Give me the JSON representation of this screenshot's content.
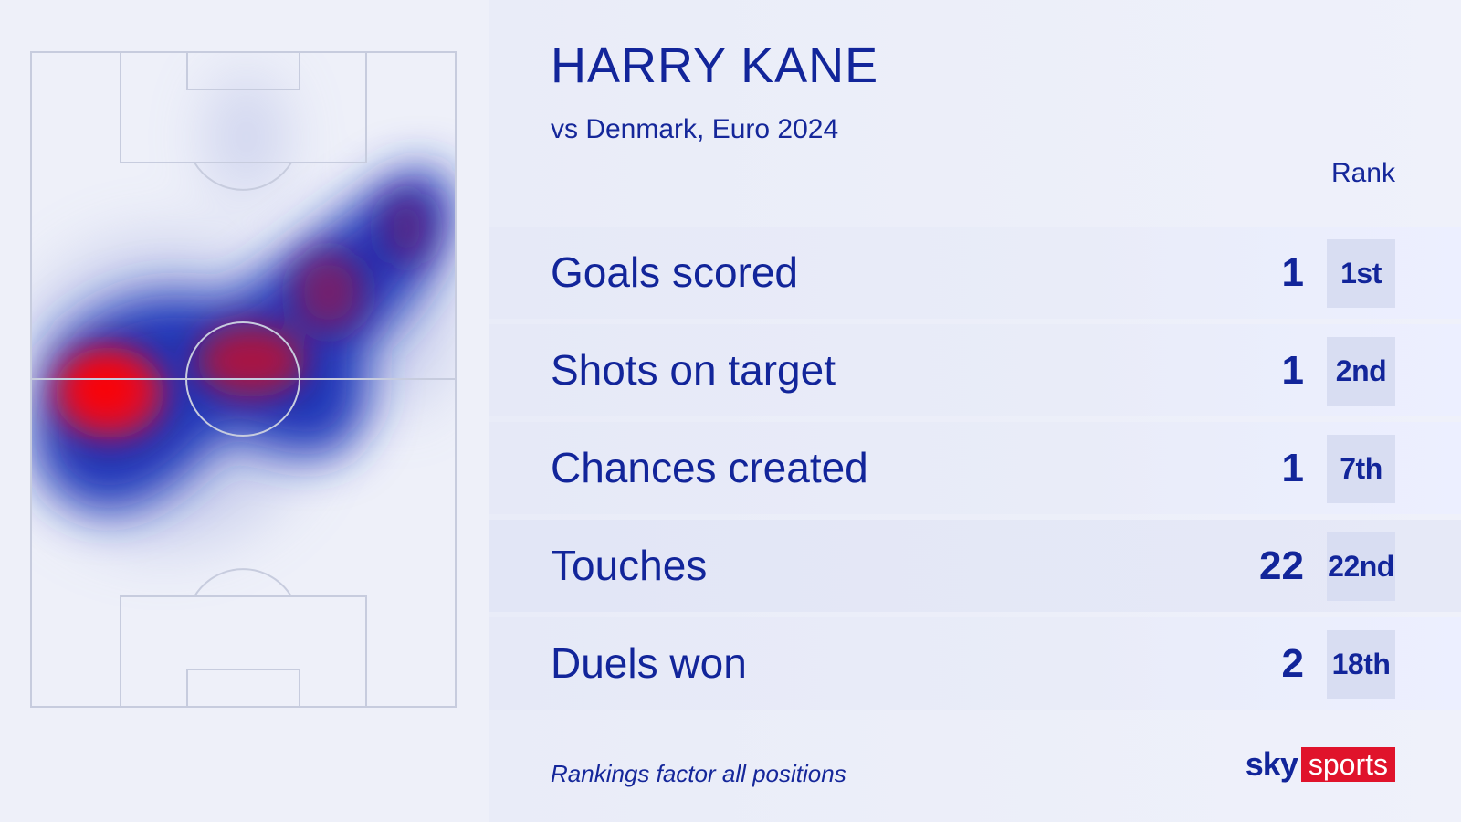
{
  "player": {
    "name": "HARRY KANE",
    "match": "vs Denmark, Euro 2024"
  },
  "rank_header": "Rank",
  "stats": [
    {
      "label": "Goals scored",
      "value": "1",
      "rank": "1st"
    },
    {
      "label": "Shots on target",
      "value": "1",
      "rank": "2nd"
    },
    {
      "label": "Chances created",
      "value": "1",
      "rank": "7th"
    },
    {
      "label": "Touches",
      "value": "22",
      "rank": "22nd"
    },
    {
      "label": "Duels won",
      "value": "2",
      "rank": "18th"
    }
  ],
  "footnote": "Rankings factor all positions",
  "logo": {
    "sky": "sky",
    "sports": "sports"
  },
  "colors": {
    "text_primary": "#12259a",
    "heat_low": "#1a35b8",
    "heat_high": "#ff0000",
    "logo_red": "#e0132b"
  }
}
